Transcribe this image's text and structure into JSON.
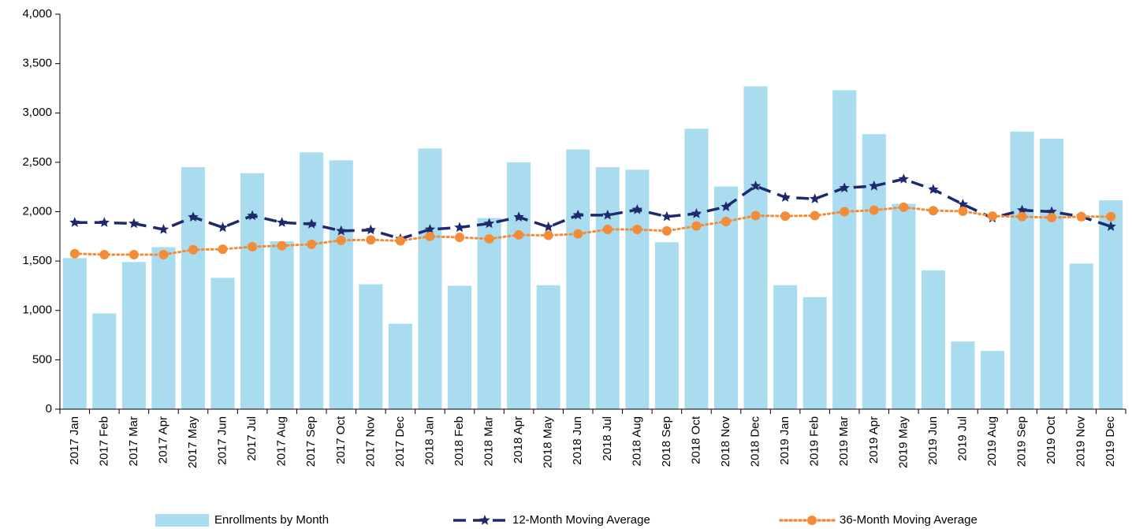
{
  "chart_data": {
    "type": "combo",
    "categories": [
      "2017 Jan",
      "2017 Feb",
      "2017 Mar",
      "2017 Apr",
      "2017 May",
      "2017 Jun",
      "2017 Jul",
      "2017 Aug",
      "2017 Sep",
      "2017 Oct",
      "2017 Nov",
      "2017 Dec",
      "2018 Jan",
      "2018 Feb",
      "2018 Mar",
      "2018 Apr",
      "2018 May",
      "2018 Jun",
      "2018 Jul",
      "2018 Aug",
      "2018 Sep",
      "2018 Oct",
      "2018 Nov",
      "2018 Dec",
      "2019 Jan",
      "2019 Feb",
      "2019 Mar",
      "2019 Apr",
      "2019 May",
      "2019 Jun",
      "2019 Jul",
      "2019 Aug",
      "2019 Sep",
      "2019 Oct",
      "2019 Nov",
      "2019 Dec"
    ],
    "series": [
      {
        "name": "Enrollments by Month",
        "type": "bar",
        "color": "#a8dcee",
        "values": [
          1530,
          970,
          1490,
          1640,
          2450,
          1330,
          2390,
          1700,
          2600,
          2520,
          1265,
          865,
          2640,
          1250,
          1935,
          2500,
          1255,
          2630,
          2450,
          2425,
          1690,
          2840,
          2255,
          3270,
          1255,
          1135,
          3230,
          2785,
          2080,
          1405,
          685,
          590,
          2810,
          2740,
          1475,
          2115
        ]
      },
      {
        "name": "12-Month Moving Average",
        "type": "line",
        "line_style": "dashed",
        "marker": "star",
        "color": "#1f2a6e",
        "values": [
          1890,
          1890,
          1880,
          1820,
          1945,
          1840,
          1960,
          1890,
          1875,
          1805,
          1815,
          1725,
          1820,
          1840,
          1880,
          1945,
          1845,
          1965,
          1965,
          2020,
          1950,
          1980,
          2050,
          2260,
          2145,
          2130,
          2240,
          2260,
          2330,
          2225,
          2075,
          1935,
          2015,
          2000,
          1950,
          1850
        ]
      },
      {
        "name": "36-Month Moving Average",
        "type": "line",
        "line_style": "dotted",
        "marker": "circle",
        "color": "#f28c38",
        "values": [
          1575,
          1565,
          1565,
          1565,
          1615,
          1620,
          1645,
          1655,
          1670,
          1710,
          1715,
          1705,
          1750,
          1740,
          1725,
          1765,
          1760,
          1775,
          1820,
          1820,
          1805,
          1855,
          1900,
          1960,
          1955,
          1960,
          2000,
          2015,
          2045,
          2010,
          2005,
          1955,
          1950,
          1940,
          1950,
          1950
        ]
      }
    ],
    "ylim": [
      0,
      4000
    ],
    "yticks": [
      0,
      500,
      {
        "value": 1000,
        "label": "1,000"
      },
      {
        "value": 1500,
        "label": "1,500"
      },
      {
        "value": 2000,
        "label": "2,000"
      },
      {
        "value": 2500,
        "label": "2,500"
      },
      {
        "value": 3000,
        "label": "3,000"
      },
      {
        "value": 3500,
        "label": "3,500"
      },
      {
        "value": 4000,
        "label": "4,000"
      }
    ],
    "grid": false,
    "legend": "bottom"
  }
}
